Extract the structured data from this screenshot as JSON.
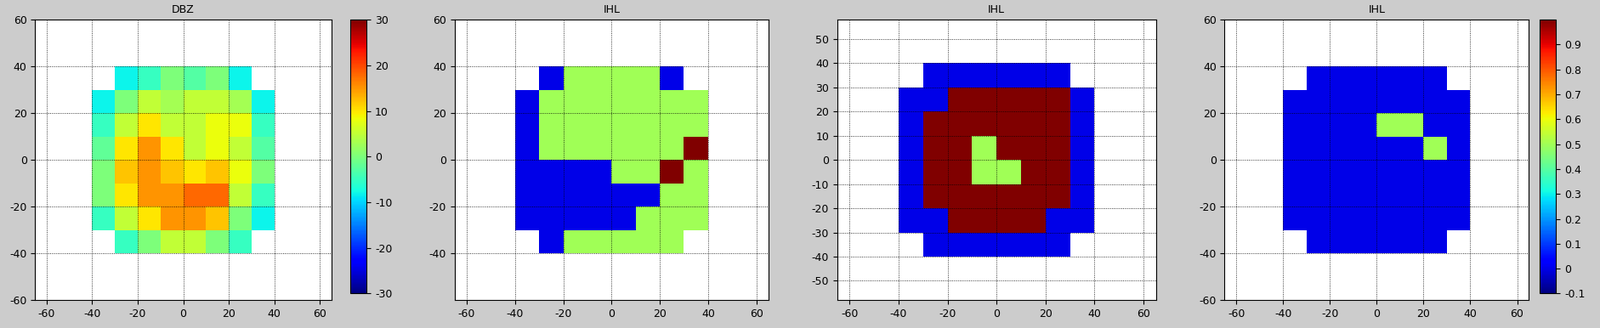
{
  "chart_data": [
    {
      "type": "heatmap",
      "title": "DBZ",
      "color": "jet",
      "grid": true,
      "xlim": [
        -65,
        65
      ],
      "ylim": [
        -60,
        60
      ],
      "xticks": [
        -60,
        -40,
        -20,
        0,
        20,
        40,
        60
      ],
      "yticks": [
        -60,
        -40,
        -20,
        0,
        20,
        40,
        60
      ],
      "x_edges": [
        -40,
        -30,
        -20,
        -10,
        0,
        10,
        20,
        30,
        40
      ],
      "y_edges": [
        -40,
        -30,
        -20,
        -10,
        0,
        10,
        20,
        30,
        40
      ],
      "cells": [
        [
          null,
          -5,
          0,
          5,
          5,
          0,
          -5,
          null
        ],
        [
          -5,
          5,
          10,
          15,
          15,
          12,
          0,
          -8
        ],
        [
          0,
          10,
          15,
          15,
          18,
          18,
          5,
          -5
        ],
        [
          0,
          12,
          15,
          12,
          10,
          12,
          8,
          0
        ],
        [
          -2,
          10,
          15,
          10,
          5,
          8,
          5,
          -3
        ],
        [
          -5,
          5,
          10,
          5,
          5,
          8,
          8,
          -5
        ],
        [
          -8,
          0,
          5,
          3,
          5,
          5,
          3,
          -8
        ],
        [
          null,
          -8,
          -5,
          0,
          -3,
          0,
          -8,
          null
        ]
      ],
      "color_range": [
        -30,
        30
      ],
      "colorbar_ticks": [
        -30,
        -20,
        -10,
        0,
        10,
        20,
        30
      ]
    },
    {
      "type": "heatmap",
      "title": "IHL",
      "color": "jet",
      "grid": true,
      "xlim": [
        -65,
        65
      ],
      "ylim": [
        -60,
        60
      ],
      "xticks": [
        -60,
        -40,
        -20,
        0,
        20,
        40,
        60
      ],
      "yticks": [
        -40,
        -20,
        0,
        20,
        40,
        60
      ],
      "x_edges": [
        -40,
        -30,
        -20,
        -10,
        0,
        10,
        20,
        30,
        40
      ],
      "y_edges": [
        -40,
        -30,
        -20,
        -10,
        0,
        10,
        20,
        30,
        40
      ],
      "cells": [
        [
          null,
          0,
          0.5,
          0.5,
          0.5,
          0.5,
          0.5,
          null
        ],
        [
          0,
          0,
          0,
          0,
          0,
          0.5,
          0.5,
          0.5
        ],
        [
          0,
          0,
          0,
          0,
          0,
          0,
          0.5,
          0.5
        ],
        [
          0,
          0,
          0,
          0,
          0.5,
          0.5,
          1,
          0.5
        ],
        [
          0,
          0.5,
          0.5,
          0.5,
          0.5,
          0.5,
          0.5,
          1
        ],
        [
          0,
          0.5,
          0.5,
          0.5,
          0.5,
          0.5,
          0.5,
          0.5
        ],
        [
          0,
          0.5,
          0.5,
          0.5,
          0.5,
          0.5,
          0.5,
          0.5
        ],
        [
          null,
          0,
          0.5,
          0.5,
          0.5,
          0.5,
          0,
          null
        ]
      ],
      "color_range": [
        -0.1,
        1.0
      ]
    },
    {
      "type": "heatmap",
      "title": "IHL",
      "color": "jet",
      "grid": true,
      "xlim": [
        -65,
        65
      ],
      "ylim": [
        -58,
        58
      ],
      "xticks": [
        -60,
        -40,
        -20,
        0,
        20,
        40,
        60
      ],
      "yticks": [
        -50,
        -40,
        -30,
        -20,
        -10,
        0,
        10,
        20,
        30,
        40,
        50
      ],
      "x_edges": [
        -40,
        -30,
        -20,
        -10,
        0,
        10,
        20,
        30,
        40
      ],
      "y_edges": [
        -40,
        -30,
        -20,
        -10,
        0,
        10,
        20,
        30,
        40
      ],
      "cells": [
        [
          null,
          0,
          0,
          0,
          0,
          0,
          0,
          null
        ],
        [
          0,
          0,
          1,
          1,
          1,
          1,
          0,
          0
        ],
        [
          0,
          1,
          1,
          1,
          1,
          1,
          1,
          0
        ],
        [
          0,
          1,
          1,
          0.5,
          0.5,
          1,
          1,
          0
        ],
        [
          0,
          1,
          1,
          0.5,
          1,
          1,
          1,
          0
        ],
        [
          0,
          1,
          1,
          1,
          1,
          1,
          1,
          0
        ],
        [
          0,
          0,
          1,
          1,
          1,
          1,
          1,
          0
        ],
        [
          null,
          0,
          0,
          0,
          0,
          0,
          0,
          null
        ]
      ],
      "color_range": [
        -0.1,
        1.0
      ]
    },
    {
      "type": "heatmap",
      "title": "IHL",
      "color": "jet",
      "grid": true,
      "xlim": [
        -65,
        65
      ],
      "ylim": [
        -60,
        60
      ],
      "xticks": [
        -60,
        -40,
        -20,
        0,
        20,
        40,
        60
      ],
      "yticks": [
        -60,
        -40,
        -20,
        0,
        20,
        40,
        60
      ],
      "x_edges": [
        -40,
        -30,
        -20,
        -10,
        0,
        10,
        20,
        30,
        40
      ],
      "y_edges": [
        -40,
        -30,
        -20,
        -10,
        0,
        10,
        20,
        30,
        40
      ],
      "cells": [
        [
          null,
          0,
          0,
          0,
          0,
          0,
          0,
          null
        ],
        [
          0,
          0,
          0,
          0,
          0,
          0,
          0,
          0
        ],
        [
          0,
          0,
          0,
          0,
          0,
          0,
          0,
          0
        ],
        [
          0,
          0,
          0,
          0,
          0,
          0,
          0,
          0
        ],
        [
          0,
          0,
          0,
          0,
          0,
          0,
          0.5,
          0
        ],
        [
          0,
          0,
          0,
          0,
          0.5,
          0.5,
          0,
          0
        ],
        [
          0,
          0,
          0,
          0,
          0,
          0,
          0,
          0
        ],
        [
          null,
          0,
          0,
          0,
          0,
          0,
          0,
          null
        ]
      ],
      "color_range": [
        -0.1,
        1.0
      ],
      "colorbar_ticks": [
        -0.1,
        0,
        0.1,
        0.2,
        0.3,
        0.4,
        0.5,
        0.6,
        0.7,
        0.8,
        0.9
      ]
    }
  ]
}
